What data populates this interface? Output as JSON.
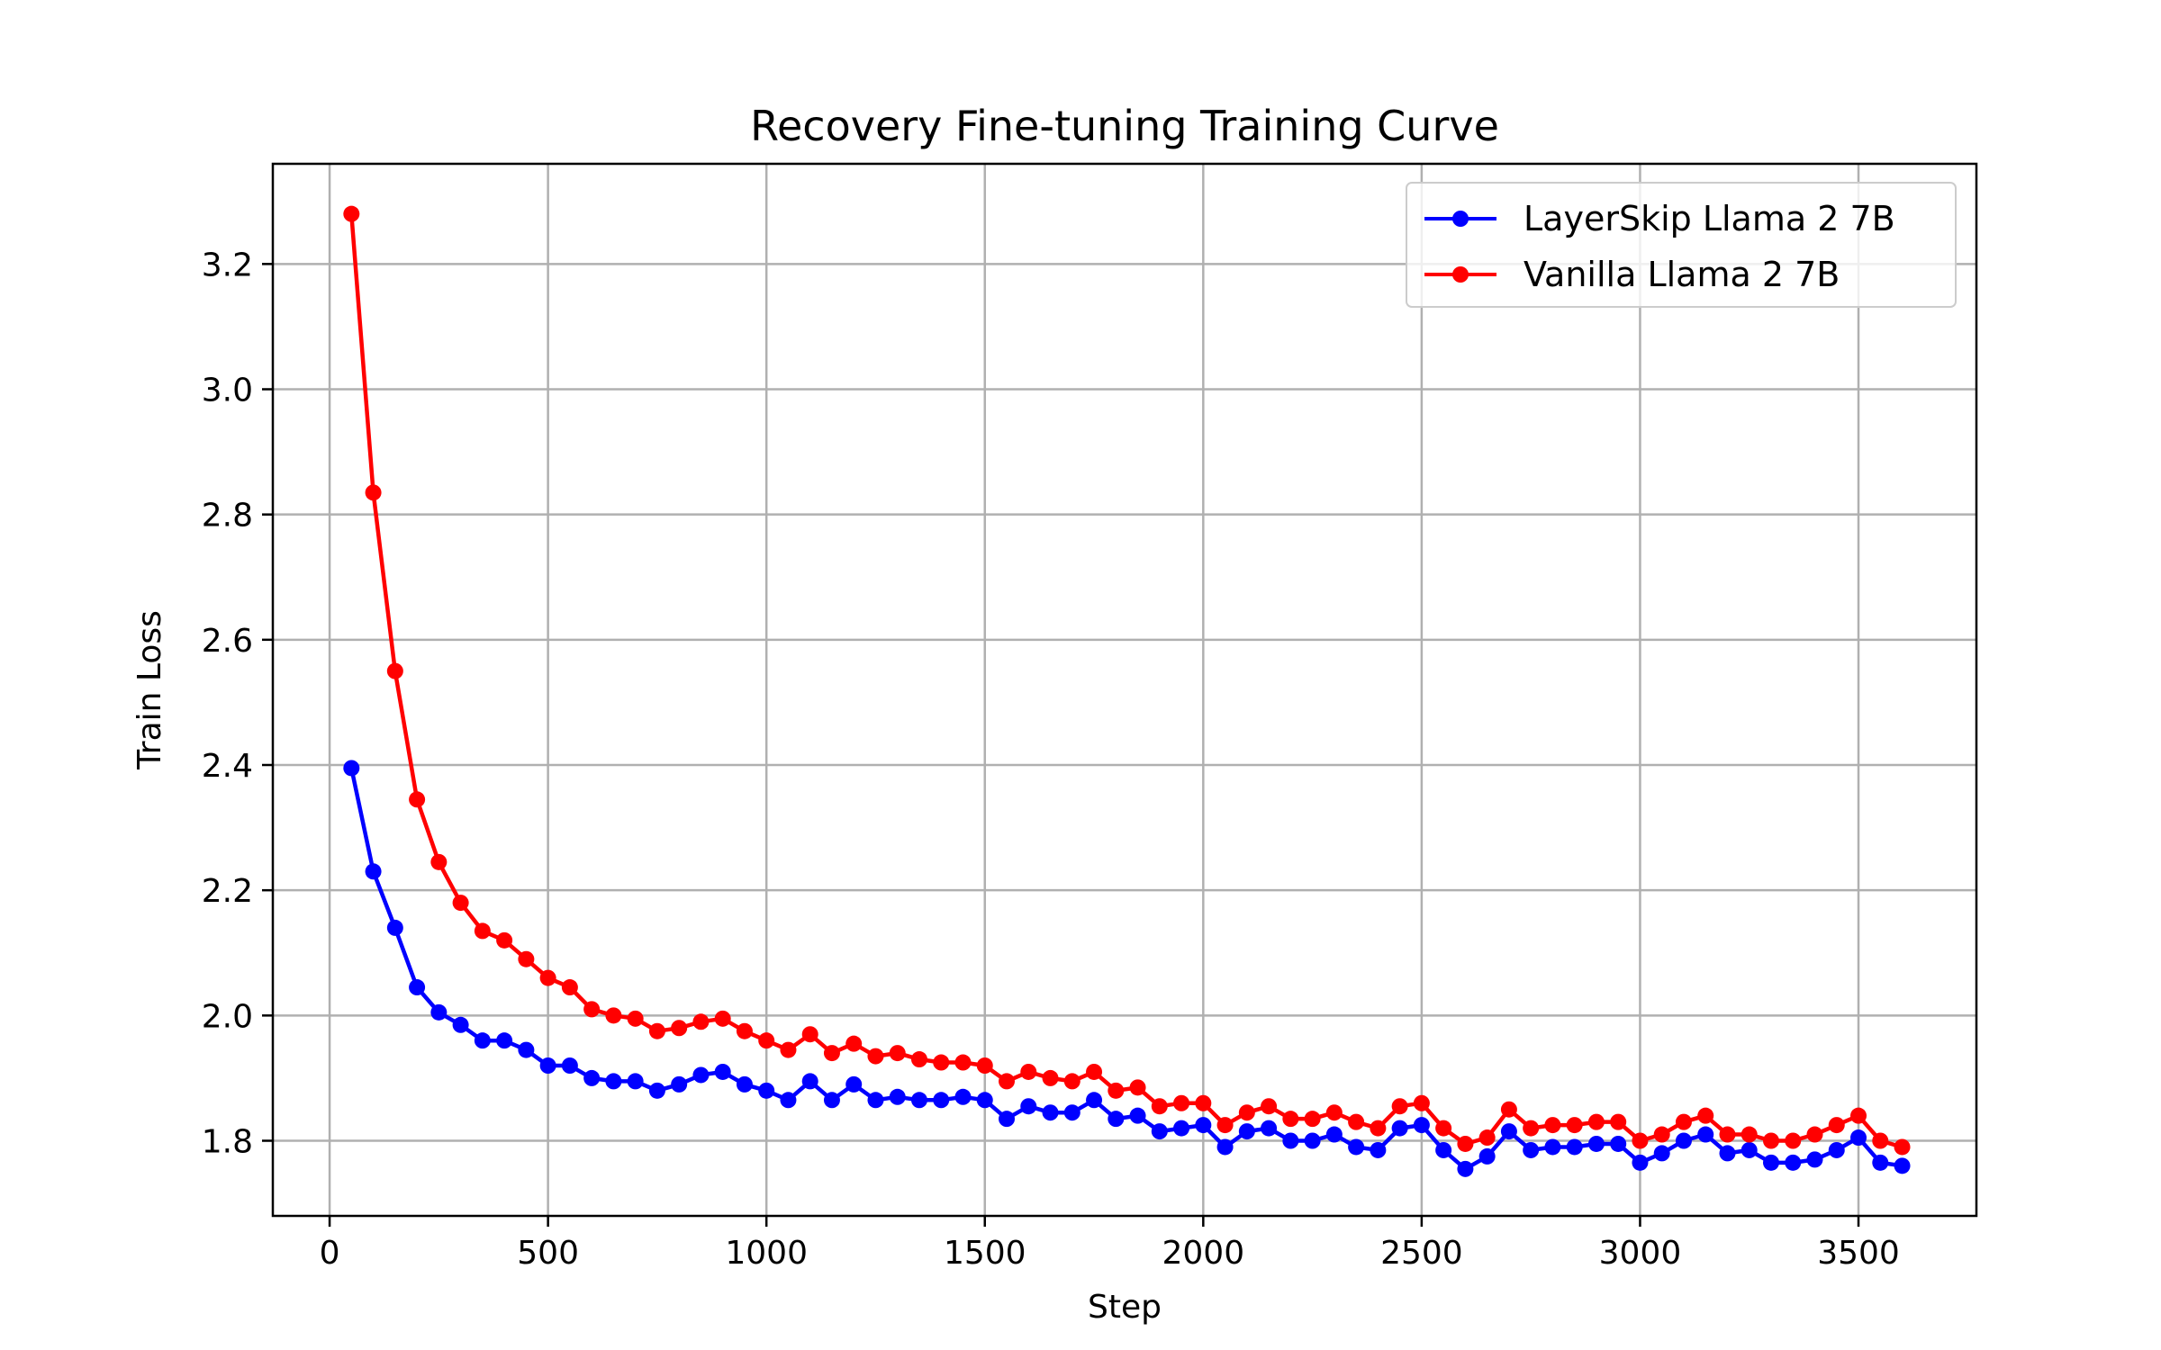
{
  "chart_data": {
    "type": "line",
    "title": "Recovery Fine-tuning Training Curve",
    "xlabel": "Step",
    "ylabel": "Train Loss",
    "xlim": [
      -130,
      3770
    ],
    "ylim": [
      1.68,
      3.36
    ],
    "xticks": [
      0,
      500,
      1000,
      1500,
      2000,
      2500,
      3000,
      3500
    ],
    "xtick_labels": [
      "0",
      "500",
      "1000",
      "1500",
      "2000",
      "2500",
      "3000",
      "3500"
    ],
    "yticks": [
      1.8,
      2.0,
      2.2,
      2.4,
      2.6,
      2.8,
      3.0,
      3.2
    ],
    "ytick_labels": [
      "1.8",
      "2.0",
      "2.2",
      "2.4",
      "2.6",
      "2.8",
      "3.0",
      "3.2"
    ],
    "grid": true,
    "legend_position": "top-right",
    "x": [
      50,
      100,
      150,
      200,
      250,
      300,
      350,
      400,
      450,
      500,
      550,
      600,
      650,
      700,
      750,
      800,
      850,
      900,
      950,
      1000,
      1050,
      1100,
      1150,
      1200,
      1250,
      1300,
      1350,
      1400,
      1450,
      1500,
      1550,
      1600,
      1650,
      1700,
      1750,
      1800,
      1850,
      1900,
      1950,
      2000,
      2050,
      2100,
      2150,
      2200,
      2250,
      2300,
      2350,
      2400,
      2450,
      2500,
      2550,
      2600,
      2650,
      2700,
      2750,
      2800,
      2850,
      2900,
      2950,
      3000,
      3050,
      3100,
      3150,
      3200,
      3250,
      3300,
      3350,
      3400,
      3450,
      3500,
      3550,
      3600
    ],
    "series": [
      {
        "name": "LayerSkip Llama 2 7B",
        "color": "#0000ff",
        "values": [
          2.395,
          2.23,
          2.14,
          2.045,
          2.005,
          1.985,
          1.96,
          1.96,
          1.945,
          1.92,
          1.92,
          1.9,
          1.895,
          1.895,
          1.88,
          1.89,
          1.905,
          1.91,
          1.89,
          1.88,
          1.865,
          1.895,
          1.865,
          1.89,
          1.865,
          1.87,
          1.865,
          1.865,
          1.87,
          1.865,
          1.835,
          1.855,
          1.845,
          1.845,
          1.865,
          1.835,
          1.84,
          1.815,
          1.82,
          1.825,
          1.79,
          1.815,
          1.82,
          1.8,
          1.8,
          1.81,
          1.79,
          1.785,
          1.82,
          1.825,
          1.785,
          1.755,
          1.775,
          1.815,
          1.785,
          1.79,
          1.79,
          1.795,
          1.795,
          1.765,
          1.78,
          1.8,
          1.81,
          1.78,
          1.785,
          1.765,
          1.765,
          1.77,
          1.785,
          1.805,
          1.765,
          1.76
        ]
      },
      {
        "name": "Vanilla Llama 2 7B",
        "color": "#ff0000",
        "values": [
          3.28,
          2.835,
          2.55,
          2.345,
          2.245,
          2.18,
          2.135,
          2.12,
          2.09,
          2.06,
          2.045,
          2.01,
          2.0,
          1.995,
          1.975,
          1.98,
          1.99,
          1.995,
          1.975,
          1.96,
          1.945,
          1.97,
          1.94,
          1.955,
          1.935,
          1.94,
          1.93,
          1.925,
          1.925,
          1.92,
          1.895,
          1.91,
          1.9,
          1.895,
          1.91,
          1.88,
          1.885,
          1.855,
          1.86,
          1.86,
          1.825,
          1.845,
          1.855,
          1.835,
          1.835,
          1.845,
          1.83,
          1.82,
          1.855,
          1.86,
          1.82,
          1.795,
          1.805,
          1.85,
          1.82,
          1.825,
          1.825,
          1.83,
          1.83,
          1.8,
          1.81,
          1.83,
          1.84,
          1.81,
          1.81,
          1.8,
          1.8,
          1.81,
          1.825,
          1.84,
          1.8,
          1.79
        ]
      }
    ]
  }
}
